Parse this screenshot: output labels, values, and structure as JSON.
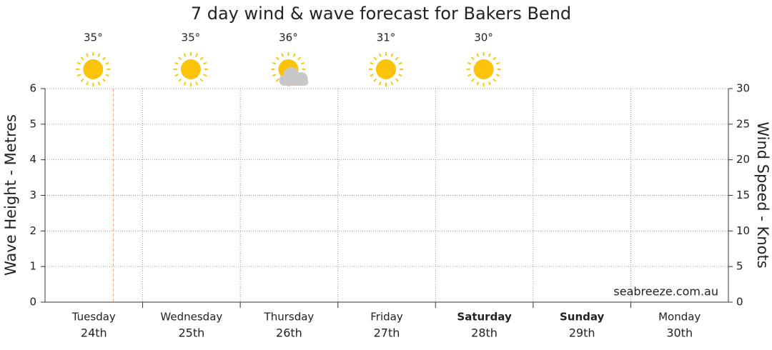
{
  "chart_data": {
    "type": "forecast",
    "title": "7 day wind & wave forecast for Bakers Bend",
    "categories": [
      "Tuesday",
      "Wednesday",
      "Thursday",
      "Friday",
      "Saturday",
      "Sunday",
      "Monday"
    ],
    "dates": [
      "24th",
      "25th",
      "26th",
      "27th",
      "28th",
      "29th",
      "30th"
    ],
    "highlight": [
      false,
      false,
      false,
      false,
      true,
      true,
      false
    ],
    "temperatures": [
      35,
      35,
      36,
      31,
      30
    ],
    "temperature_labels": [
      "35°",
      "35°",
      "36°",
      "31°",
      "30°"
    ],
    "icons": [
      "sunny",
      "sunny",
      "partly-cloudy",
      "sunny",
      "sunny"
    ],
    "now": 0.7,
    "ylabel": "Wave Height - Metres",
    "y2label": "Wind Speed - Knots",
    "ylim": [
      0,
      6
    ],
    "yticks": [
      0,
      1,
      2,
      3,
      4,
      5,
      6
    ],
    "y2lim": [
      0,
      30
    ],
    "y2ticks": [
      0,
      5,
      10,
      15,
      20,
      25,
      30
    ],
    "grid": true,
    "watermark": "seabreeze.com.au"
  }
}
